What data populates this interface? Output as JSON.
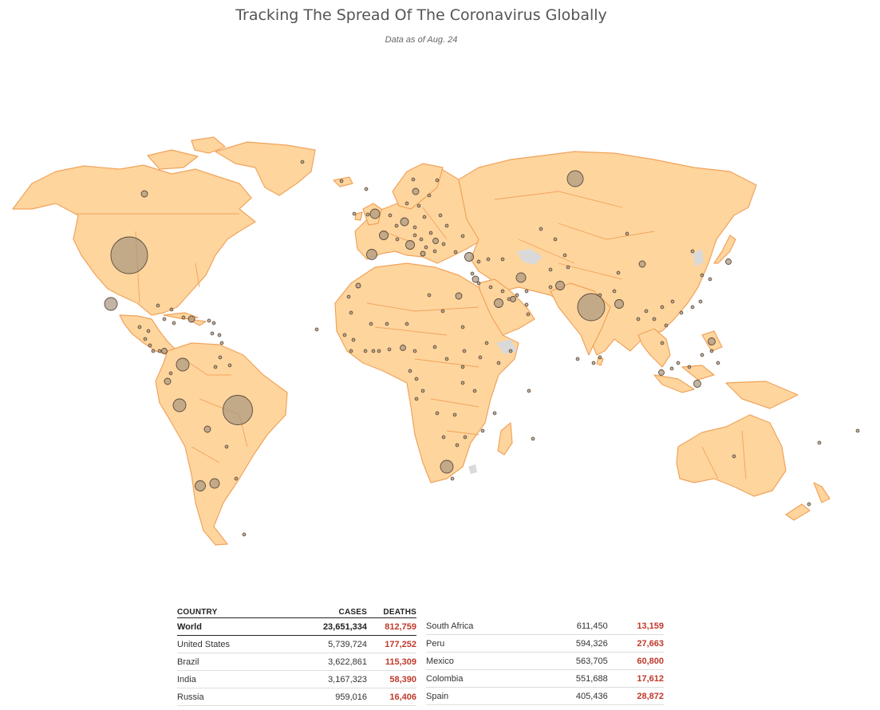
{
  "header": {
    "title": "Tracking The Spread Of The Coronavirus Globally",
    "subtitle": "Data as of Aug. 24"
  },
  "colors": {
    "land": "#ffd59e",
    "border": "#f0a35a",
    "bubble": "#a8957f",
    "no_data": "#d9d9d9",
    "deaths_text": "#c0392b"
  },
  "map": {
    "type": "proportional-symbol world map",
    "bubble_sizes_shown": [
      {
        "region": "United States",
        "cases": 5739724
      },
      {
        "region": "Brazil",
        "cases": 3622861
      },
      {
        "region": "India",
        "cases": 3167323
      },
      {
        "region": "Russia",
        "cases": 959016
      },
      {
        "region": "South Africa",
        "cases": 611450
      },
      {
        "region": "Peru",
        "cases": 594326
      },
      {
        "region": "Mexico",
        "cases": 563705
      },
      {
        "region": "Colombia",
        "cases": 551688
      },
      {
        "region": "Spain",
        "cases": 405436
      }
    ]
  },
  "table": {
    "headers": {
      "country": "COUNTRY",
      "cases": "CASES",
      "deaths": "DEATHS"
    },
    "world": {
      "country": "World",
      "cases": "23,651,334",
      "deaths": "812,759"
    },
    "left_rows": [
      {
        "country": "United States",
        "cases": "5,739,724",
        "deaths": "177,252"
      },
      {
        "country": "Brazil",
        "cases": "3,622,861",
        "deaths": "115,309"
      },
      {
        "country": "India",
        "cases": "3,167,323",
        "deaths": "58,390"
      },
      {
        "country": "Russia",
        "cases": "959,016",
        "deaths": "16,406"
      }
    ],
    "right_rows": [
      {
        "country": "South Africa",
        "cases": "611,450",
        "deaths": "13,159"
      },
      {
        "country": "Peru",
        "cases": "594,326",
        "deaths": "27,663"
      },
      {
        "country": "Mexico",
        "cases": "563,705",
        "deaths": "60,800"
      },
      {
        "country": "Colombia",
        "cases": "551,688",
        "deaths": "17,612"
      },
      {
        "country": "Spain",
        "cases": "405,436",
        "deaths": "28,872"
      }
    ]
  }
}
